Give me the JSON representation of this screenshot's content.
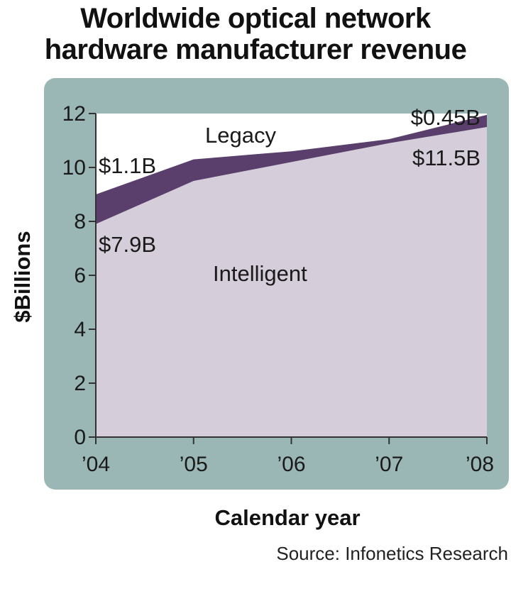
{
  "header": {
    "title_line1": "Worldwide optical network",
    "title_line2": "hardware manufacturer revenue"
  },
  "footer": {
    "source": "Source: Infonetics Research"
  },
  "colors": {
    "panel": "#9ab7b6",
    "plot_background": "#ffffff",
    "intelligent_fill": "#d5cdda",
    "legacy_fill": "#5a3f6c",
    "axis": "#333333"
  },
  "chart_data": {
    "type": "area",
    "stacked": true,
    "title": "Worldwide optical network hardware manufacturer revenue",
    "xlabel": "Calendar year",
    "ylabel": "$Billions",
    "categories": [
      "’04",
      "’05",
      "’06",
      "’07",
      "’08"
    ],
    "ylim": [
      0,
      12
    ],
    "yticks": [
      0,
      2,
      4,
      6,
      8,
      10,
      12
    ],
    "series": [
      {
        "name": "Intelligent",
        "color": "#d5cdda",
        "values": [
          7.9,
          9.5,
          10.2,
          10.9,
          11.5
        ]
      },
      {
        "name": "Legacy",
        "color": "#5a3f6c",
        "values": [
          1.1,
          0.8,
          0.4,
          0.15,
          0.45
        ]
      }
    ],
    "annotations": [
      {
        "text": "$1.1B"
      },
      {
        "text": "$7.9B"
      },
      {
        "text": "$0.45B"
      },
      {
        "text": "$11.5B"
      }
    ],
    "grid": false,
    "legend": "none"
  }
}
